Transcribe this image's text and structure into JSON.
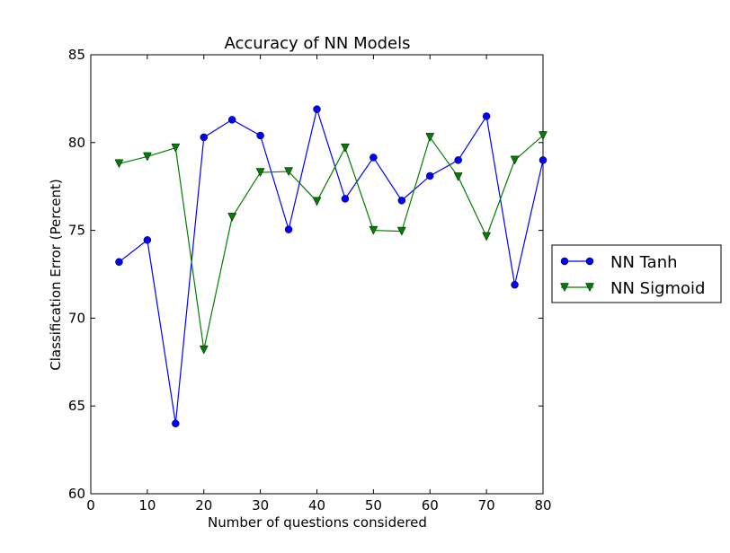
{
  "chart_data": {
    "type": "line",
    "title": "Accuracy of NN Models",
    "xlabel": "Number of questions considered",
    "ylabel": "Classification Error (Percent)",
    "xlim": [
      0,
      80
    ],
    "ylim": [
      60,
      85
    ],
    "xticks": [
      "0",
      "10",
      "20",
      "30",
      "40",
      "50",
      "60",
      "70",
      "80"
    ],
    "yticks": [
      "60",
      "65",
      "70",
      "75",
      "80",
      "85"
    ],
    "grid": false,
    "legend_position": "outside-right",
    "x": [
      5,
      10,
      15,
      20,
      25,
      30,
      35,
      40,
      45,
      50,
      55,
      60,
      65,
      70,
      75,
      80
    ],
    "series": [
      {
        "name": "NN Tanh",
        "color": "#0000ff",
        "marker": "circle",
        "values": [
          73.2,
          74.45,
          64.0,
          80.3,
          81.3,
          80.4,
          75.05,
          81.9,
          76.8,
          79.15,
          76.7,
          78.1,
          79.0,
          81.5,
          71.9,
          79.0
        ]
      },
      {
        "name": "NN Sigmoid",
        "color": "#007f00",
        "marker": "triangle-down",
        "values": [
          78.8,
          79.2,
          79.7,
          68.2,
          75.75,
          78.3,
          78.35,
          76.65,
          79.7,
          75.0,
          74.95,
          80.3,
          78.05,
          74.65,
          79.0,
          80.4
        ]
      }
    ]
  }
}
